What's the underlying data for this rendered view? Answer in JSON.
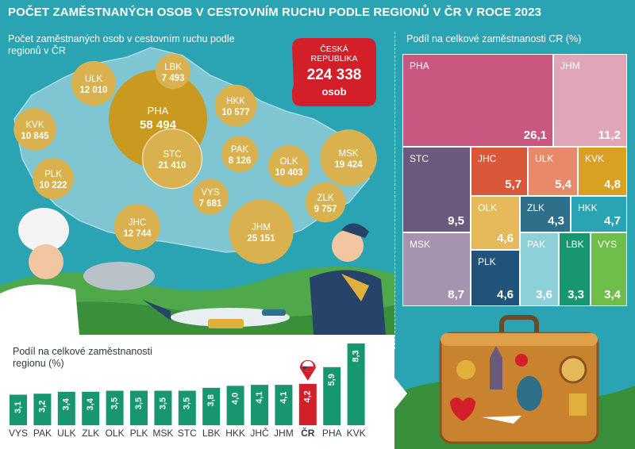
{
  "title": "POČET ZAMĚSTNANÝCH OSOB V CESTOVNÍM RUCHU PODLE REGIONŮ V ČR V ROCE 2023",
  "colors": {
    "background": "#2aa3b3",
    "bubble": "#d9b24f",
    "pha_bubble": "#c99a1f",
    "bar": "#17966f",
    "bar_highlight": "#d21f2a",
    "cr_card": "#d21f2a"
  },
  "chart_data": [
    {
      "type": "bubble-map",
      "subtitle_line1": "Počet zaměstnaných osob v cestovním ruchu podle",
      "subtitle_line2": "regionů v ČR",
      "regions": [
        {
          "name": "PHA",
          "value": "58 494"
        },
        {
          "name": "STC",
          "value": "21 410"
        },
        {
          "name": "JHM",
          "value": "25 151"
        },
        {
          "name": "MSK",
          "value": "19 424"
        },
        {
          "name": "JHC",
          "value": "12 744"
        },
        {
          "name": "ULK",
          "value": "12 010"
        },
        {
          "name": "KVK",
          "value": "10 845"
        },
        {
          "name": "HKK",
          "value": "10 577"
        },
        {
          "name": "OLK",
          "value": "10 403"
        },
        {
          "name": "PLK",
          "value": "10 222"
        },
        {
          "name": "ZLK",
          "value": "9 757"
        },
        {
          "name": "PAK",
          "value": "8 126"
        },
        {
          "name": "VYS",
          "value": "7 681"
        },
        {
          "name": "LBK",
          "value": "7 493"
        }
      ],
      "total": {
        "label_line1": "ČESKÁ",
        "label_line2": "REPUBLIKA",
        "value": "224 338",
        "unit": "osob"
      }
    },
    {
      "type": "treemap",
      "subtitle": "Podíl na celkové zaměstnanosti CR (%)",
      "cells": [
        {
          "name": "PHA",
          "value": "26,1",
          "color": "#c9577f"
        },
        {
          "name": "JHM",
          "value": "11,2",
          "color": "#e0a5b8"
        },
        {
          "name": "STC",
          "value": "9,5",
          "color": "#6b5a7e"
        },
        {
          "name": "JHC",
          "value": "5,7",
          "color": "#d9573a"
        },
        {
          "name": "ULK",
          "value": "5,4",
          "color": "#e88a6a"
        },
        {
          "name": "KVK",
          "value": "4,8",
          "color": "#d9a123"
        },
        {
          "name": "OLK",
          "value": "4,6",
          "color": "#e6b95a"
        },
        {
          "name": "ZLK",
          "value": "4,3",
          "color": "#2e6f8a"
        },
        {
          "name": "HKK",
          "value": "4,7",
          "color": "#2aa3b3"
        },
        {
          "name": "MSK",
          "value": "8,7",
          "color": "#a594b0"
        },
        {
          "name": "PLK",
          "value": "4,6",
          "color": "#22547a"
        },
        {
          "name": "PAK",
          "value": "3,6",
          "color": "#8dd0d8"
        },
        {
          "name": "LBK",
          "value": "3,3",
          "color": "#17966f"
        },
        {
          "name": "VYS",
          "value": "3,4",
          "color": "#6fbd4a"
        }
      ]
    },
    {
      "type": "bar",
      "subtitle_line1": "Podíl na celkové zaměstnanosti",
      "subtitle_line2": "regionu (%)",
      "categories": [
        "VYS",
        "PAK",
        "ULK",
        "ZLK",
        "OLK",
        "PLK",
        "MSK",
        "STC",
        "LBK",
        "HKK",
        "JHČ",
        "JHM",
        "ČR",
        "PHA",
        "KVK"
      ],
      "values": [
        3.1,
        3.2,
        3.4,
        3.4,
        3.5,
        3.5,
        3.5,
        3.5,
        3.8,
        4.0,
        4.1,
        4.1,
        4.2,
        5.9,
        8.3
      ],
      "value_labels": [
        "3,1",
        "3,2",
        "3,4",
        "3,4",
        "3,5",
        "3,5",
        "3,5",
        "3,5",
        "3,8",
        "4,0",
        "4,1",
        "4,1",
        "4,2",
        "5,9",
        "8,3"
      ],
      "highlight": "ČR",
      "ylim": [
        0,
        8.3
      ]
    }
  ]
}
